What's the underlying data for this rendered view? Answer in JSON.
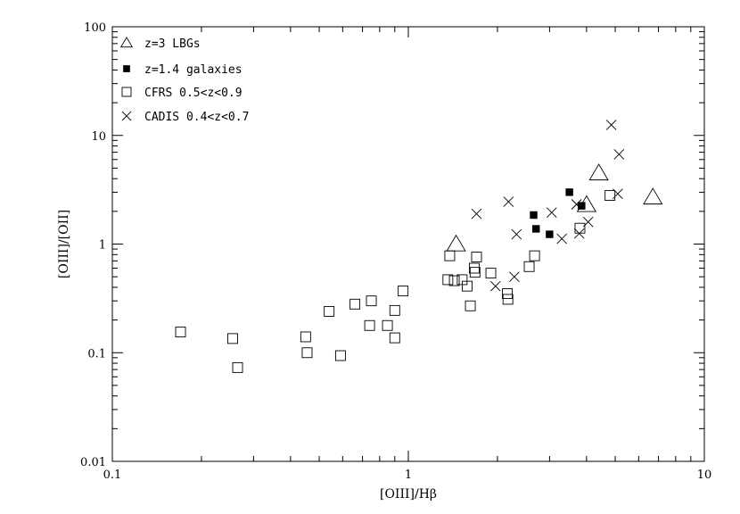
{
  "chart_data": {
    "type": "scatter",
    "xlabel": "[OIII]/Hβ",
    "ylabel": "[OIII]/[OII]",
    "xscale": "log",
    "yscale": "log",
    "xlim": [
      0.1,
      10
    ],
    "ylim": [
      0.01,
      100
    ],
    "x_tick_labels": [
      "0.1",
      "1",
      "10"
    ],
    "y_tick_labels": [
      "0.01",
      "0.1",
      "1",
      "10",
      "100"
    ],
    "legend_position": "top-left",
    "series": [
      {
        "name": "z=3  LBGs",
        "marker": "open-triangle",
        "points": [
          [
            1.45,
            1.0
          ],
          [
            4.4,
            4.5
          ],
          [
            4.0,
            2.3
          ],
          [
            6.7,
            2.7
          ]
        ]
      },
      {
        "name": "z=1.4  galaxies",
        "marker": "filled-square",
        "points": [
          [
            2.65,
            1.85
          ],
          [
            2.7,
            1.38
          ],
          [
            3.0,
            1.23
          ],
          [
            3.5,
            3.0
          ],
          [
            3.85,
            2.25
          ]
        ]
      },
      {
        "name": "CFRS  0.5<z<0.9",
        "marker": "open-square",
        "points": [
          [
            0.17,
            0.155
          ],
          [
            0.255,
            0.135
          ],
          [
            0.265,
            0.073
          ],
          [
            0.45,
            0.14
          ],
          [
            0.455,
            0.1
          ],
          [
            0.54,
            0.24
          ],
          [
            0.59,
            0.094
          ],
          [
            0.66,
            0.28
          ],
          [
            0.74,
            0.178
          ],
          [
            0.75,
            0.3
          ],
          [
            0.85,
            0.178
          ],
          [
            0.9,
            0.245
          ],
          [
            0.9,
            0.137
          ],
          [
            0.96,
            0.37
          ],
          [
            1.36,
            0.47
          ],
          [
            1.38,
            0.78
          ],
          [
            1.43,
            0.46
          ],
          [
            1.52,
            0.47
          ],
          [
            1.58,
            0.41
          ],
          [
            1.62,
            0.27
          ],
          [
            1.67,
            0.6
          ],
          [
            1.68,
            0.55
          ],
          [
            1.7,
            0.76
          ],
          [
            1.9,
            0.54
          ],
          [
            2.16,
            0.35
          ],
          [
            2.17,
            0.31
          ],
          [
            2.56,
            0.62
          ],
          [
            2.67,
            0.78
          ],
          [
            3.8,
            1.4
          ],
          [
            4.8,
            2.8
          ]
        ]
      },
      {
        "name": "CADIS  0.4<z<0.7",
        "marker": "cross",
        "points": [
          [
            1.7,
            1.9
          ],
          [
            1.97,
            0.41
          ],
          [
            2.18,
            2.45
          ],
          [
            2.28,
            0.5
          ],
          [
            2.32,
            1.23
          ],
          [
            3.05,
            1.95
          ],
          [
            3.3,
            1.12
          ],
          [
            3.7,
            2.32
          ],
          [
            3.78,
            1.25
          ],
          [
            4.05,
            1.6
          ],
          [
            4.85,
            12.5
          ],
          [
            5.15,
            6.7
          ],
          [
            5.1,
            2.9
          ]
        ]
      }
    ]
  }
}
